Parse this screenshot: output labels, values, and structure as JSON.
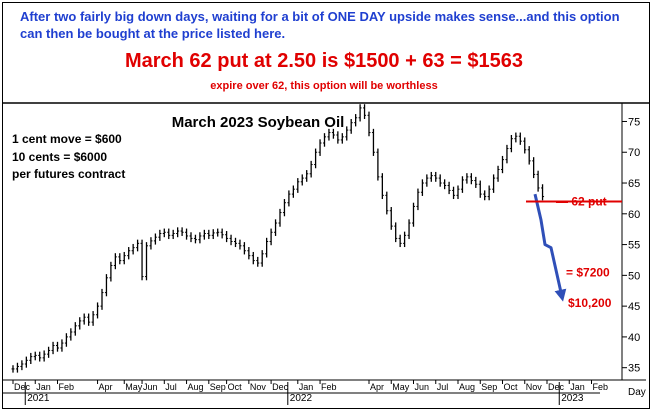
{
  "header": {
    "line1": "After two fairly big down days, waiting for a bit of ONE DAY upside makes sense...and this option can then be bought at the price listed here.",
    "line2": "March 62 put at 2.50 is $1500 + 63 = $1563",
    "line3": "expire over 62, this option will be worthless"
  },
  "colors": {
    "header_blue": "#1f3fd0",
    "red": "#e00000",
    "arrow": "#2f4fb8",
    "price": "#000000"
  },
  "chart_data": {
    "type": "line",
    "title": "March 2023 Soybean Oil",
    "notes": [
      "1 cent move = $600",
      "10 cents = $6000",
      "per futures contract"
    ],
    "x_ticks": [
      "Dec",
      "Jan",
      "Feb",
      "Apr",
      "May",
      "Jun",
      "Jul",
      "Aug",
      "Sep",
      "Oct",
      "Nov",
      "Dec",
      "Jan",
      "Feb",
      "Apr",
      "May",
      "Jun",
      "Jul",
      "Aug",
      "Sep",
      "Oct",
      "Nov",
      "Dec",
      "Jan",
      "Feb"
    ],
    "x_ticks_idx": [
      0,
      5,
      10,
      19,
      25,
      29,
      34,
      39,
      44,
      48,
      53,
      58,
      64,
      69,
      80,
      85,
      90,
      95,
      100,
      105,
      110,
      115,
      120,
      125,
      130
    ],
    "year_labels": [
      "2021",
      "2022",
      "2023"
    ],
    "year_labels_idx": [
      5,
      64,
      125
    ],
    "x_axis_unit": "Day",
    "ylim": [
      33,
      78
    ],
    "y_ticks": [
      35,
      40,
      45,
      50,
      55,
      60,
      65,
      70,
      75
    ],
    "series": [
      {
        "values": [
          34.8,
          35.2,
          35.6,
          36.2,
          36.8,
          37.0,
          36.6,
          37.2,
          37.8,
          38.6,
          38.2,
          39.0,
          40.0,
          40.8,
          41.8,
          42.6,
          43.2,
          42.4,
          43.6,
          45.0,
          47.2,
          49.6,
          51.6,
          53.0,
          52.4,
          53.2,
          54.0,
          54.5,
          55.2,
          49.8,
          54.8,
          55.6,
          56.2,
          56.8,
          57.0,
          56.5,
          56.8,
          57.2,
          57.0,
          56.4,
          56.0,
          55.8,
          56.4,
          56.8,
          56.5,
          56.9,
          57.0,
          56.6,
          56.0,
          55.5,
          55.2,
          54.8,
          54.0,
          53.2,
          52.4,
          52.0,
          53.5,
          55.5,
          57.0,
          58.5,
          60.2,
          61.8,
          63.2,
          64.0,
          65.2,
          65.8,
          66.5,
          68.0,
          70.0,
          71.5,
          72.5,
          73.2,
          72.8,
          72.0,
          72.5,
          73.6,
          74.8,
          75.6,
          77.2,
          76.0,
          73.2,
          70.0,
          66.0,
          63.0,
          60.5,
          58.0,
          56.0,
          55.2,
          56.5,
          58.5,
          61.2,
          63.5,
          65.0,
          65.8,
          66.2,
          65.8,
          65.0,
          64.6,
          63.8,
          63.0,
          64.0,
          65.5,
          66.0,
          65.4,
          64.8,
          63.2,
          62.8,
          64.0,
          65.8,
          67.2,
          68.8,
          70.6,
          72.2,
          72.6,
          71.8,
          70.4,
          68.6,
          66.4,
          64.2,
          62.8
        ]
      }
    ],
    "annotations": [
      {
        "text": "62 put",
        "y": 62,
        "color": "#e00000"
      },
      {
        "text": "= $7200",
        "y": 50.5,
        "color": "#e00000"
      },
      {
        "text": "$10,200",
        "y": 45.5,
        "color": "#e00000"
      }
    ],
    "projection": {
      "values": [
        63.2,
        59.0,
        55.0,
        54.5,
        46.5
      ],
      "color": "#2f4fb8"
    },
    "grid": false
  }
}
